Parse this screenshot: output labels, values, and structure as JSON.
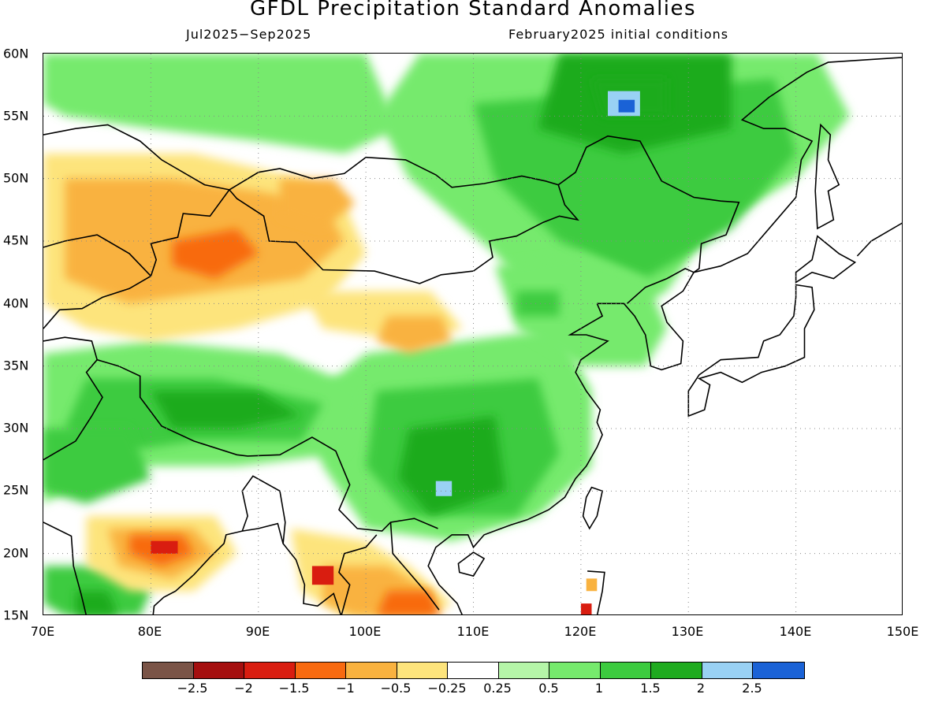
{
  "header": {
    "title": "GFDL Precipitation Standard Anomalies",
    "season": "Jul2025−Sep2025",
    "initial_conditions": "February2025 initial conditions"
  },
  "map": {
    "lat_labels": [
      "60N",
      "55N",
      "50N",
      "45N",
      "40N",
      "35N",
      "30N",
      "25N",
      "20N",
      "15N"
    ],
    "lon_labels": [
      "70E",
      "80E",
      "90E",
      "100E",
      "110E",
      "120E",
      "130E",
      "140E",
      "150E"
    ],
    "lon_range": [
      70,
      150
    ],
    "lat_range": [
      15,
      60
    ],
    "grid": "dotted"
  },
  "legend": {
    "colors": [
      "#7a5447",
      "#a50f0f",
      "#d91d10",
      "#f86a10",
      "#f9b23f",
      "#fde47c",
      "#ffffff",
      "#b5f5a8",
      "#76ea6d",
      "#3ccb3f",
      "#1fab1f",
      "#99d1f4",
      "#1a62d6"
    ],
    "labels": [
      "−2.5",
      "−2",
      "−1.5",
      "−1",
      "−0.5",
      "−0.25",
      "0.25",
      "0.5",
      "1",
      "1.5",
      "2",
      "2.5"
    ]
  },
  "anomaly_regions": [
    {
      "level": "1",
      "lon": 120,
      "lat": 51
    },
    {
      "level": "1.5",
      "lon": 127,
      "lat": 52
    },
    {
      "level": "2",
      "lon": 125,
      "lat": 56
    },
    {
      "level": "2.5",
      "lon": 124,
      "lat": 56
    },
    {
      "level": "1.5",
      "lon": 107,
      "lat": 27
    },
    {
      "level": "2",
      "lon": 107,
      "lat": 26
    },
    {
      "level": "1",
      "lon": 112,
      "lat": 29
    },
    {
      "level": "1",
      "lon": 90,
      "lat": 33
    },
    {
      "level": "1.5",
      "lon": 87,
      "lat": 32
    },
    {
      "level": "1.5",
      "lon": 78,
      "lat": 28
    },
    {
      "level": "1",
      "lon": 116,
      "lat": 40
    },
    {
      "level": "1.5",
      "lon": 116,
      "lat": 40
    },
    {
      "level": "1",
      "lon": 103,
      "lat": 57
    },
    {
      "level": "1.5",
      "lon": 95,
      "lat": 57
    },
    {
      "level": "−1",
      "lon": 80,
      "lat": 48
    },
    {
      "level": "−1",
      "lon": 86,
      "lat": 43
    },
    {
      "level": "−1",
      "lon": 96,
      "lat": 48
    },
    {
      "level": "−0.5",
      "lon": 103,
      "lat": 40
    },
    {
      "level": "−1",
      "lon": 106,
      "lat": 38
    },
    {
      "level": "−2",
      "lon": 81,
      "lat": 21
    },
    {
      "level": "−1.5",
      "lon": 82,
      "lat": 21
    },
    {
      "level": "−1.5",
      "lon": 102,
      "lat": 17
    },
    {
      "level": "−2",
      "lon": 96,
      "lat": 18
    }
  ]
}
